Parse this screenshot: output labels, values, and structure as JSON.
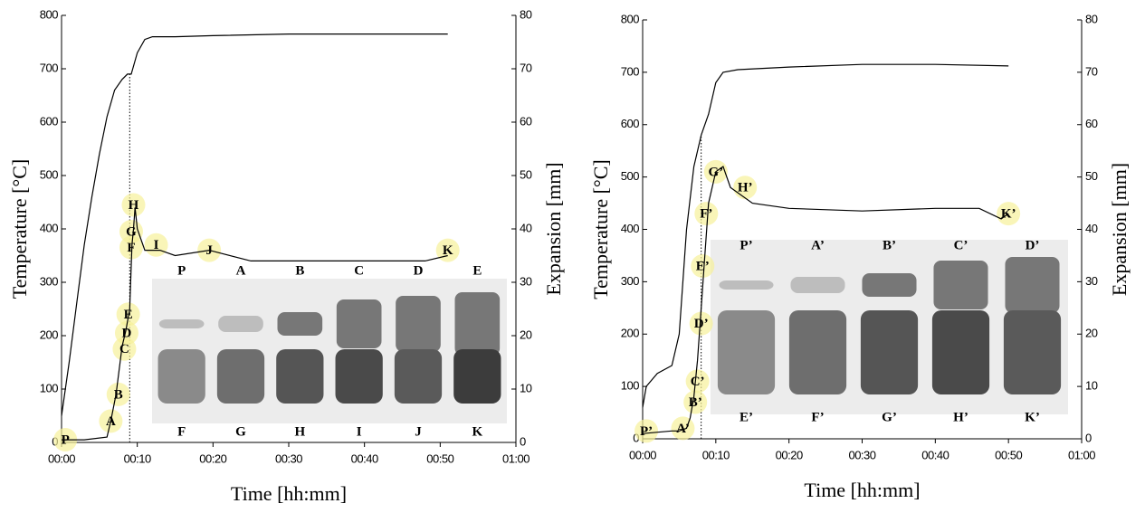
{
  "chart_data": [
    {
      "type": "line",
      "x_label": "Time [hh:mm]",
      "y_label": "Temperature [°C]",
      "y2_label": "Expansion [mm]",
      "xlim": [
        0,
        60
      ],
      "xticks": [
        {
          "value": 0,
          "label": "00:00"
        },
        {
          "value": 10,
          "label": "00:10"
        },
        {
          "value": 20,
          "label": "00:20"
        },
        {
          "value": 30,
          "label": "00:30"
        },
        {
          "value": 40,
          "label": "00:40"
        },
        {
          "value": 50,
          "label": "00:50"
        },
        {
          "value": 60,
          "label": "01:00"
        }
      ],
      "ylim": [
        0,
        800
      ],
      "yticks": [
        0,
        100,
        200,
        300,
        400,
        500,
        600,
        700,
        800
      ],
      "y2lim": [
        0,
        80
      ],
      "y2ticks": [
        0,
        10,
        20,
        30,
        40,
        50,
        60,
        70,
        80
      ],
      "reference_x": 9,
      "series": [
        {
          "color": "#000000",
          "x": [
            0,
            1,
            2,
            3,
            4,
            5,
            6,
            7,
            8,
            8.7,
            9.2,
            10,
            11,
            12,
            15,
            20,
            30,
            40,
            51
          ],
          "values": [
            50,
            150,
            260,
            370,
            460,
            540,
            610,
            660,
            680,
            690,
            690,
            730,
            755,
            760,
            760,
            762,
            765,
            765,
            765
          ]
        },
        {
          "color": "#000000",
          "axis": "y2",
          "x": [
            0,
            3,
            6,
            6.5,
            7.2,
            8,
            8.5,
            9,
            9.3,
            9.5,
            9.7,
            10,
            11,
            13,
            15,
            19.5,
            25,
            30,
            40,
            48,
            51
          ],
          "values": [
            0.5,
            0.5,
            1,
            4,
            9,
            18,
            21,
            25,
            37,
            40,
            44,
            40,
            36,
            36,
            35,
            36,
            34,
            34,
            34,
            34,
            35
          ]
        }
      ],
      "annotations": [
        {
          "text": "P",
          "x": 0.5,
          "y": 0.5
        },
        {
          "text": "A",
          "x": 6.5,
          "y": 4
        },
        {
          "text": "B",
          "x": 7.5,
          "y": 9
        },
        {
          "text": "C",
          "x": 8.3,
          "y": 17.5
        },
        {
          "text": "D",
          "x": 8.6,
          "y": 20.5
        },
        {
          "text": "E",
          "x": 8.8,
          "y": 24
        },
        {
          "text": "F",
          "x": 9.2,
          "y": 36.5
        },
        {
          "text": "G",
          "x": 9.2,
          "y": 39.5
        },
        {
          "text": "H",
          "x": 9.5,
          "y": 44.5
        },
        {
          "text": "I",
          "x": 12.5,
          "y": 37
        },
        {
          "text": "J",
          "x": 19.5,
          "y": 36
        },
        {
          "text": "K",
          "x": 51,
          "y": 36
        }
      ],
      "samples_top": [
        "P",
        "A",
        "B",
        "C",
        "D",
        "E"
      ],
      "samples_bottom": [
        "F",
        "G",
        "H",
        "I",
        "J",
        "K"
      ]
    },
    {
      "type": "line",
      "x_label": "Time [hh:mm]",
      "y_label": "Temperature [°C]",
      "y2_label": "Expansion [mm]",
      "xlim": [
        0,
        60
      ],
      "xticks": [
        {
          "value": 0,
          "label": "00:00"
        },
        {
          "value": 10,
          "label": "00:10"
        },
        {
          "value": 20,
          "label": "00:20"
        },
        {
          "value": 30,
          "label": "00:30"
        },
        {
          "value": 40,
          "label": "00:40"
        },
        {
          "value": 50,
          "label": "00:50"
        },
        {
          "value": 60,
          "label": "01:00"
        }
      ],
      "ylim": [
        0,
        800
      ],
      "yticks": [
        0,
        100,
        200,
        300,
        400,
        500,
        600,
        700,
        800
      ],
      "y2lim": [
        0,
        80
      ],
      "y2ticks": [
        0,
        10,
        20,
        30,
        40,
        50,
        60,
        70,
        80
      ],
      "reference_x": 8,
      "series": [
        {
          "color": "#000000",
          "x": [
            0,
            0.5,
            2,
            4,
            5,
            6,
            7,
            8,
            9,
            10,
            11,
            13,
            20,
            30,
            40,
            50
          ],
          "values": [
            60,
            100,
            125,
            140,
            200,
            400,
            520,
            580,
            620,
            680,
            700,
            705,
            710,
            715,
            715,
            712
          ]
        },
        {
          "color": "#000000",
          "axis": "y2",
          "x": [
            0,
            4,
            5,
            6,
            6.5,
            7,
            7.5,
            8,
            8.5,
            9,
            10,
            11,
            12,
            15,
            20,
            30,
            40,
            46,
            49,
            50
          ],
          "values": [
            1,
            1.5,
            1.5,
            2,
            4,
            8,
            15,
            25,
            35,
            45,
            51,
            52,
            48,
            45,
            44,
            43.5,
            44,
            44,
            42,
            43
          ]
        }
      ],
      "annotations": [
        {
          "text": "P’",
          "x": 0.5,
          "y": 1.5
        },
        {
          "text": "A’",
          "x": 5.5,
          "y": 2
        },
        {
          "text": "B’",
          "x": 7.2,
          "y": 7
        },
        {
          "text": "C’",
          "x": 7.5,
          "y": 11
        },
        {
          "text": "D’",
          "x": 8,
          "y": 22
        },
        {
          "text": "E’",
          "x": 8.2,
          "y": 33
        },
        {
          "text": "F’",
          "x": 8.7,
          "y": 43
        },
        {
          "text": "G’",
          "x": 10,
          "y": 51
        },
        {
          "text": "H’",
          "x": 14,
          "y": 48
        },
        {
          "text": "K’",
          "x": 50,
          "y": 43
        }
      ],
      "samples_top": [
        "P’",
        "A’",
        "B’",
        "C’",
        "D’"
      ],
      "samples_bottom": [
        "E’",
        "F’",
        "G’",
        "H’",
        "K’"
      ]
    }
  ]
}
